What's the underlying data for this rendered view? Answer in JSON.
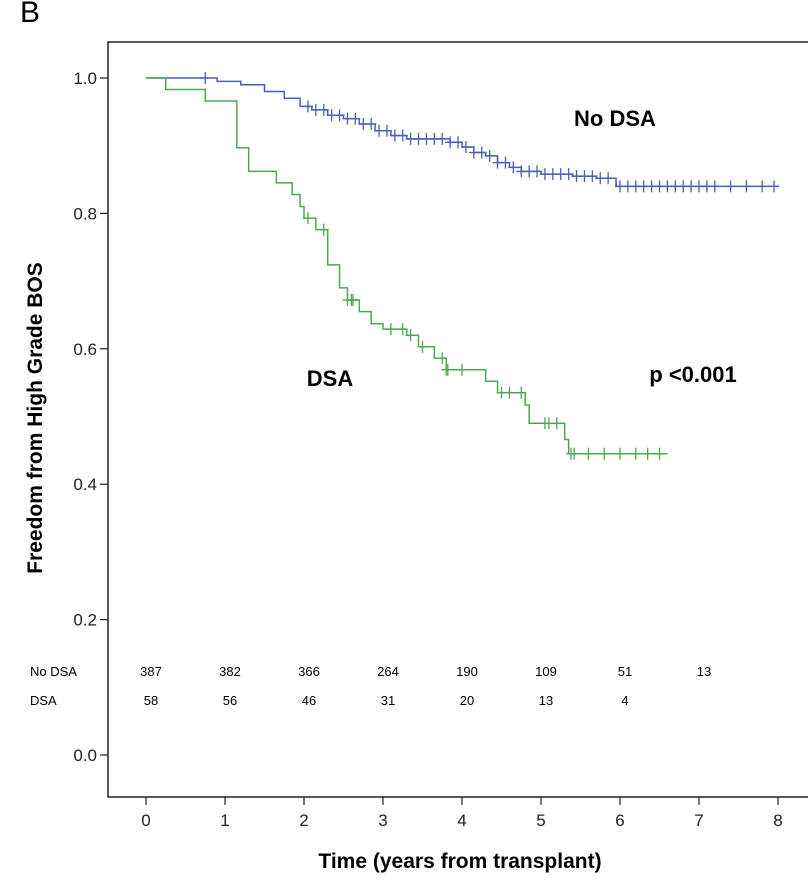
{
  "panel_letter": "B",
  "chart_data": {
    "type": "line",
    "title": "",
    "xlabel": "Time (years from transplant)",
    "ylabel": "Freedom from High Grade BOS",
    "xlim": [
      0,
      8
    ],
    "ylim": [
      0,
      1.0
    ],
    "x_ticks": [
      "0",
      "1",
      "2",
      "3",
      "4",
      "5",
      "6",
      "7",
      "8"
    ],
    "y_ticks": [
      "0.0",
      "0.2",
      "0.4",
      "0.6",
      "0.8",
      "1.0"
    ],
    "grid": false,
    "annotations": [
      {
        "text": "No DSA",
        "series": "No DSA"
      },
      {
        "text": "DSA",
        "series": "DSA"
      },
      {
        "text": "p <0.001"
      }
    ],
    "series": [
      {
        "name": "No DSA",
        "color": "#4a5fb8",
        "steps": [
          [
            0,
            1.0
          ],
          [
            0.6,
            1.0
          ],
          [
            0.9,
            0.995
          ],
          [
            1.2,
            0.99
          ],
          [
            1.5,
            0.98
          ],
          [
            1.75,
            0.97
          ],
          [
            1.95,
            0.958
          ],
          [
            2.1,
            0.953
          ],
          [
            2.3,
            0.945
          ],
          [
            2.5,
            0.94
          ],
          [
            2.7,
            0.932
          ],
          [
            2.9,
            0.922
          ],
          [
            3.1,
            0.915
          ],
          [
            3.3,
            0.91
          ],
          [
            3.6,
            0.91
          ],
          [
            3.85,
            0.905
          ],
          [
            4.0,
            0.898
          ],
          [
            4.15,
            0.89
          ],
          [
            4.3,
            0.885
          ],
          [
            4.45,
            0.875
          ],
          [
            4.6,
            0.868
          ],
          [
            4.75,
            0.862
          ],
          [
            5.0,
            0.858
          ],
          [
            5.4,
            0.855
          ],
          [
            5.7,
            0.852
          ],
          [
            5.95,
            0.84
          ],
          [
            8.0,
            0.84
          ]
        ],
        "censored_x": [
          0.75,
          2.05,
          2.15,
          2.25,
          2.35,
          2.45,
          2.55,
          2.65,
          2.75,
          2.85,
          2.95,
          3.05,
          3.15,
          3.25,
          3.35,
          3.45,
          3.55,
          3.65,
          3.75,
          3.85,
          3.95,
          4.05,
          4.15,
          4.25,
          4.35,
          4.45,
          4.55,
          4.65,
          4.75,
          4.85,
          4.95,
          5.05,
          5.15,
          5.25,
          5.35,
          5.45,
          5.55,
          5.65,
          5.75,
          5.85,
          6.0,
          6.1,
          6.2,
          6.3,
          6.4,
          6.5,
          6.6,
          6.7,
          6.8,
          6.9,
          7.0,
          7.1,
          7.2,
          7.4,
          7.6,
          7.8,
          7.95
        ]
      },
      {
        "name": "DSA",
        "color": "#4fa84f",
        "steps": [
          [
            0,
            1.0
          ],
          [
            0.25,
            0.983
          ],
          [
            0.75,
            0.966
          ],
          [
            1.15,
            0.897
          ],
          [
            1.3,
            0.862
          ],
          [
            1.65,
            0.845
          ],
          [
            1.85,
            0.828
          ],
          [
            1.95,
            0.81
          ],
          [
            2.0,
            0.793
          ],
          [
            2.15,
            0.776
          ],
          [
            2.3,
            0.724
          ],
          [
            2.45,
            0.69
          ],
          [
            2.55,
            0.672
          ],
          [
            2.7,
            0.655
          ],
          [
            2.85,
            0.637
          ],
          [
            3.0,
            0.629
          ],
          [
            3.3,
            0.62
          ],
          [
            3.45,
            0.603
          ],
          [
            3.65,
            0.586
          ],
          [
            3.8,
            0.569
          ],
          [
            4.3,
            0.552
          ],
          [
            4.45,
            0.535
          ],
          [
            4.8,
            0.517
          ],
          [
            4.85,
            0.49
          ],
          [
            5.3,
            0.466
          ],
          [
            5.35,
            0.445
          ],
          [
            6.6,
            0.445
          ]
        ],
        "censored_x": [
          2.05,
          2.25,
          2.55,
          2.6,
          2.62,
          3.1,
          3.25,
          3.35,
          3.5,
          3.75,
          3.8,
          3.82,
          4.0,
          4.5,
          4.6,
          4.75,
          5.05,
          5.1,
          5.2,
          5.38,
          5.42,
          5.6,
          5.8,
          6.0,
          6.2,
          6.35,
          6.5
        ]
      }
    ],
    "risk_table": {
      "rows": [
        {
          "label": "No DSA",
          "values": [
            "387",
            "382",
            "366",
            "264",
            "190",
            "109",
            "51",
            "13"
          ]
        },
        {
          "label": "DSA",
          "values": [
            "58",
            "56",
            "46",
            "31",
            "20",
            "13",
            "4",
            ""
          ]
        }
      ]
    }
  }
}
